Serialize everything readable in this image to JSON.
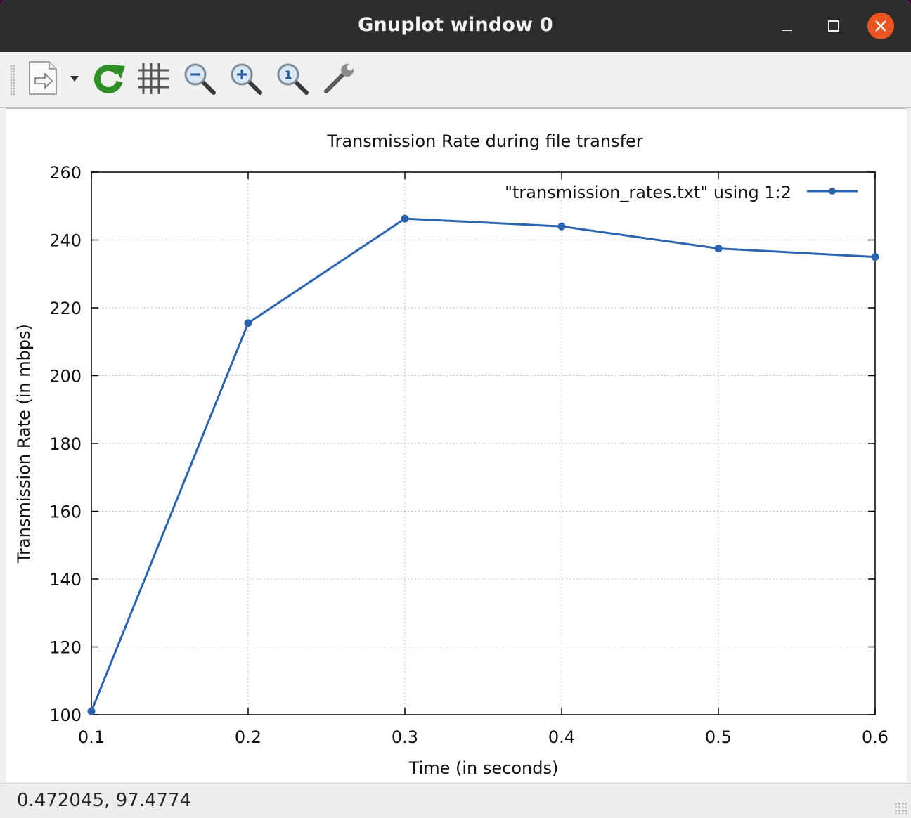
{
  "window": {
    "title": "Gnuplot window 0",
    "controls": {
      "minimize_icon": "minimize-icon",
      "maximize_icon": "maximize-icon",
      "close_icon": "close-icon",
      "close_color": "#e95420"
    }
  },
  "toolbar": {
    "items": [
      {
        "name": "export",
        "icon": "document-export-icon"
      },
      {
        "name": "replot",
        "icon": "refresh-icon"
      },
      {
        "name": "grid",
        "icon": "grid-icon"
      },
      {
        "name": "zoom-out",
        "icon": "zoom-out-icon"
      },
      {
        "name": "zoom-in",
        "icon": "zoom-in-icon"
      },
      {
        "name": "zoom-reset",
        "icon": "zoom-original-icon"
      },
      {
        "name": "settings",
        "icon": "wrench-icon"
      }
    ]
  },
  "status": {
    "coordinates": "0.472045,  97.4774"
  },
  "chart_data": {
    "type": "line",
    "title": "Transmission Rate during file transfer",
    "xlabel": "Time (in seconds)",
    "ylabel": "Transmission Rate (in mbps)",
    "xlim": [
      0.1,
      0.6
    ],
    "ylim": [
      100,
      260
    ],
    "xticks": [
      "0.1",
      "0.2",
      "0.3",
      "0.4",
      "0.5",
      "0.6"
    ],
    "yticks": [
      "100",
      "120",
      "140",
      "160",
      "180",
      "200",
      "220",
      "240",
      "260"
    ],
    "grid": true,
    "legend_position": "top-right",
    "series": [
      {
        "name": "\"transmission_rates.txt\" using 1:2",
        "color": "#2a63b0",
        "x": [
          0.1,
          0.2,
          0.3,
          0.4,
          0.5,
          0.6
        ],
        "y": [
          101,
          215.5,
          246.3,
          244,
          237.5,
          235
        ]
      }
    ]
  }
}
